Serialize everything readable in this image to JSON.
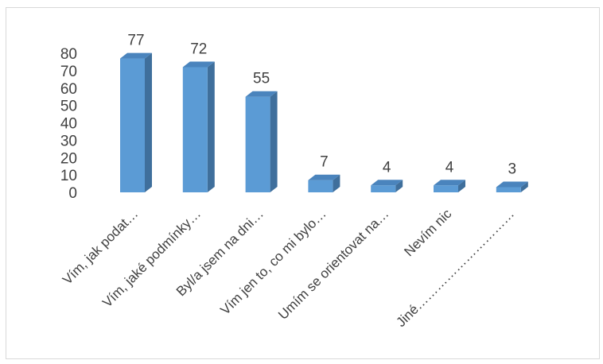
{
  "chart_data": {
    "type": "bar",
    "style": "3d-column",
    "title": "",
    "xlabel": "",
    "ylabel": "",
    "ylim": [
      0,
      80
    ],
    "yticks": [
      0,
      10,
      20,
      30,
      40,
      50,
      60,
      70,
      80
    ],
    "grid": false,
    "legend": "none",
    "categories": [
      "Vím, jak podat…",
      "Vím, jaké podmínky…",
      "Byl/a jsem na dni…",
      "Vím jen to, co mi bylo…",
      "Umím se orientovat na…",
      "Nevím nic",
      "Jiné…………………………"
    ],
    "values": [
      77,
      72,
      55,
      7,
      4,
      4,
      3
    ],
    "colors": {
      "bar_front": "#5b9bd5",
      "bar_side": "#3f6f9c",
      "bar_top": "#4a84bd",
      "text": "#404040"
    }
  }
}
